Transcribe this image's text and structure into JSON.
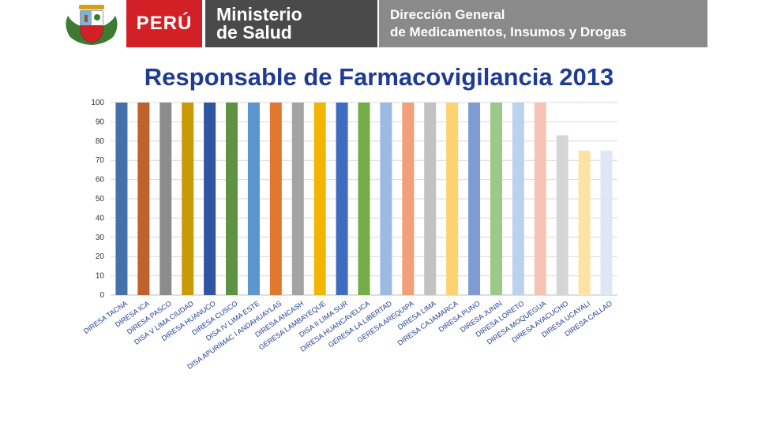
{
  "header": {
    "country": "PERÚ",
    "ministry_line1": "Ministerio",
    "ministry_line2": "de Salud",
    "directorate_line1": "Dirección General",
    "directorate_line2": "de Medicamentos, Insumos y Drogas",
    "crest_icon": "coat-of-arms-icon",
    "colors": {
      "country_bg": "#d32027",
      "ministry_bg": "#4a4a4a",
      "directorate_bg": "#8a8a8a"
    }
  },
  "chart_data": {
    "type": "bar",
    "title": "Responsable de Farmacovigilancia 2013",
    "xlabel": "",
    "ylabel": "",
    "ylim": [
      0,
      100
    ],
    "yticks": [
      0,
      10,
      20,
      30,
      40,
      50,
      60,
      70,
      80,
      90,
      100
    ],
    "grid": true,
    "legend": "none",
    "categories": [
      "DIRESA TACNA",
      "DIRESA ICA",
      "DIRESA PASCO",
      "DISA V LIMA CIUDAD",
      "DIRESA HUANUCO",
      "DIRESA CUSCO",
      "DISA IV LIMA ESTE",
      "DISA APURIMAC I ANDAHUAYLAS",
      "DIRESA ANCASH",
      "GERESA LAMBAYEQUE",
      "DISA II LIMA SUR",
      "DIRESA HUANCAVELICA",
      "GERESA LA LIBERTAD",
      "GERESA AREQUIPA",
      "DIRESA LIMA",
      "DIRESA CAJAMARCA",
      "DIRESA PUNO",
      "DIRESA JUNIN",
      "DIRESA LORETO",
      "DIRESA MOQUEGUA",
      "DIRESA AYACUCHO",
      "DIRESA UCAYALI",
      "DIRESA CALLAO"
    ],
    "values": [
      100,
      100,
      100,
      100,
      100,
      100,
      100,
      100,
      100,
      100,
      100,
      100,
      100,
      100,
      100,
      100,
      100,
      100,
      100,
      100,
      83,
      75,
      75
    ],
    "colors": [
      "#4472a8",
      "#c0622d",
      "#8c8c8c",
      "#c99a06",
      "#2f56a0",
      "#5f9242",
      "#5b96cf",
      "#e0782f",
      "#a3a3a3",
      "#f2b504",
      "#3d6cc0",
      "#72ad47",
      "#9cb9e2",
      "#f1a07a",
      "#c2c2c2",
      "#ffd270",
      "#7f9bd4",
      "#9cc98a",
      "#bcd2ec",
      "#f6c4b4",
      "#d6d6d6",
      "#fee2a6",
      "#dfe7f4"
    ]
  }
}
